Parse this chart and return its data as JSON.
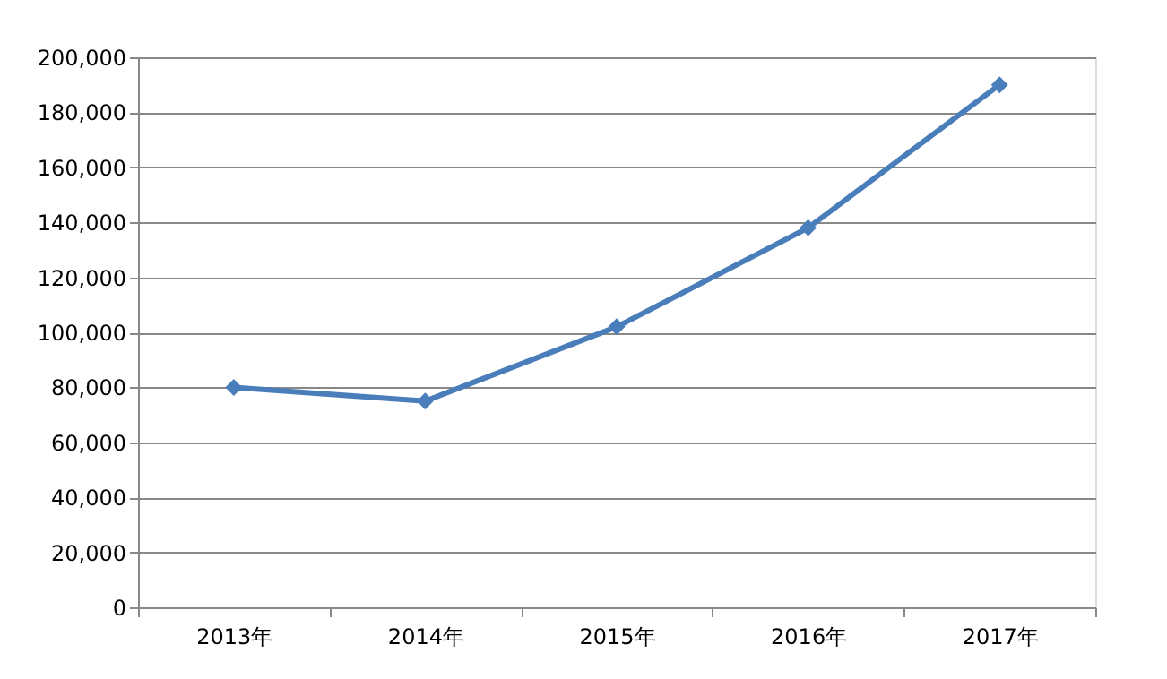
{
  "chart_data": {
    "type": "line",
    "categories": [
      "2013年",
      "2014年",
      "2015年",
      "2016年",
      "2017年"
    ],
    "series": [
      {
        "color": "#4a7ebb",
        "values": [
          80000,
          75000,
          102000,
          138000,
          190000
        ]
      }
    ],
    "ylim": [
      0,
      200000
    ],
    "yticks": [
      {
        "value": 0,
        "label": "0"
      },
      {
        "value": 20000,
        "label": "20,000"
      },
      {
        "value": 40000,
        "label": "40,000"
      },
      {
        "value": 60000,
        "label": "60,000"
      },
      {
        "value": 80000,
        "label": "80,000"
      },
      {
        "value": 100000,
        "label": "100,000"
      },
      {
        "value": 120000,
        "label": "120,000"
      },
      {
        "value": 140000,
        "label": "140,000"
      },
      {
        "value": 160000,
        "label": "160,000"
      },
      {
        "value": 180000,
        "label": "180,000"
      },
      {
        "value": 200000,
        "label": "200,000"
      }
    ],
    "grid": "y",
    "marker": "diamond",
    "line_style": "solid",
    "legend": false
  }
}
